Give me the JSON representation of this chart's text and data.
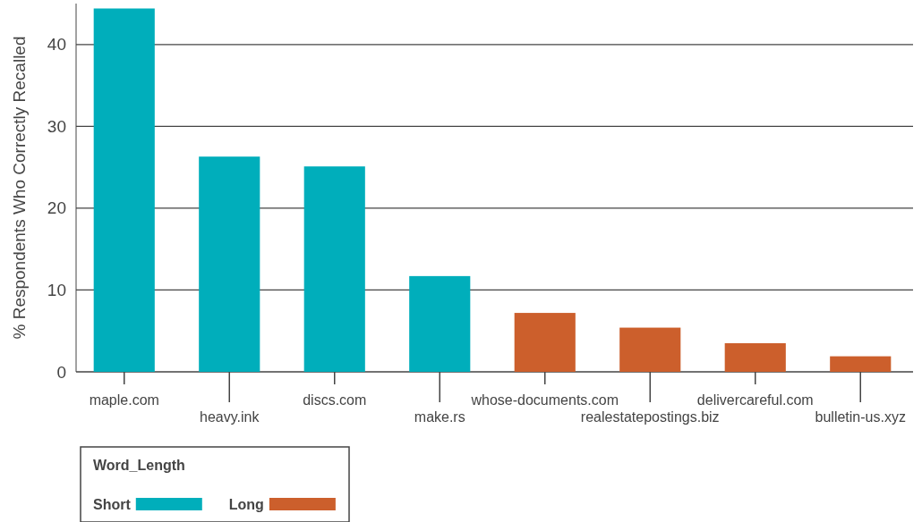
{
  "chart_data": {
    "type": "bar",
    "ylabel": "% Respondents Who Correctly Recalled",
    "legend_title": "Word_Length",
    "legend": "bottom left",
    "grid": "y",
    "categories": [
      "maple.com",
      "heavy.ink",
      "discs.com",
      "make.rs",
      "whose-documents.com",
      "realestatepostings.biz",
      "delivercareful.com",
      "bulletin-us.xyz"
    ],
    "series": [
      {
        "name": "Short",
        "color": "#00aebb",
        "values": [
          44.4,
          26.3,
          25.1,
          11.7,
          null,
          null,
          null,
          null
        ]
      },
      {
        "name": "Long",
        "color": "#cc5f2c",
        "values": [
          null,
          null,
          null,
          null,
          7.2,
          5.4,
          3.5,
          1.9
        ]
      }
    ],
    "ylim": [
      0,
      45
    ],
    "yticks": [
      0,
      10,
      20,
      30,
      40
    ]
  }
}
